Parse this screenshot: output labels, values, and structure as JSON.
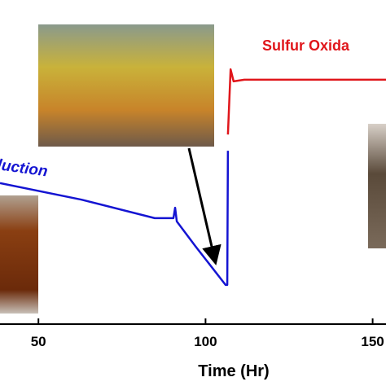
{
  "chart_data": {
    "type": "line",
    "xlabel": "Time (Hr)",
    "annotations": [
      {
        "text": "Sulfur Oxida",
        "color": "#e0161b"
      },
      {
        "text": "luction",
        "color": "#1414d2"
      }
    ],
    "xlim": [
      38.5,
      154
    ],
    "xticks": [
      50,
      100,
      150
    ],
    "ylim": [
      0,
      100
    ],
    "series": [
      {
        "color": "#1414d2",
        "x": [
          38.5,
          62.9,
          84.8,
          90.4,
          90.9,
          91.4,
          97,
          106,
          106.5,
          106.7
        ],
        "values": [
          43.5,
          38.4,
          32.7,
          32.7,
          35.9,
          31.7,
          24,
          12.1,
          12.1,
          53.5
        ]
      },
      {
        "color": "#e0161b",
        "x": [
          106.7,
          107.5,
          108.4,
          111.6,
          154
        ],
        "values": [
          58.5,
          78.6,
          74.9,
          75.4,
          75.4
        ]
      }
    ]
  }
}
